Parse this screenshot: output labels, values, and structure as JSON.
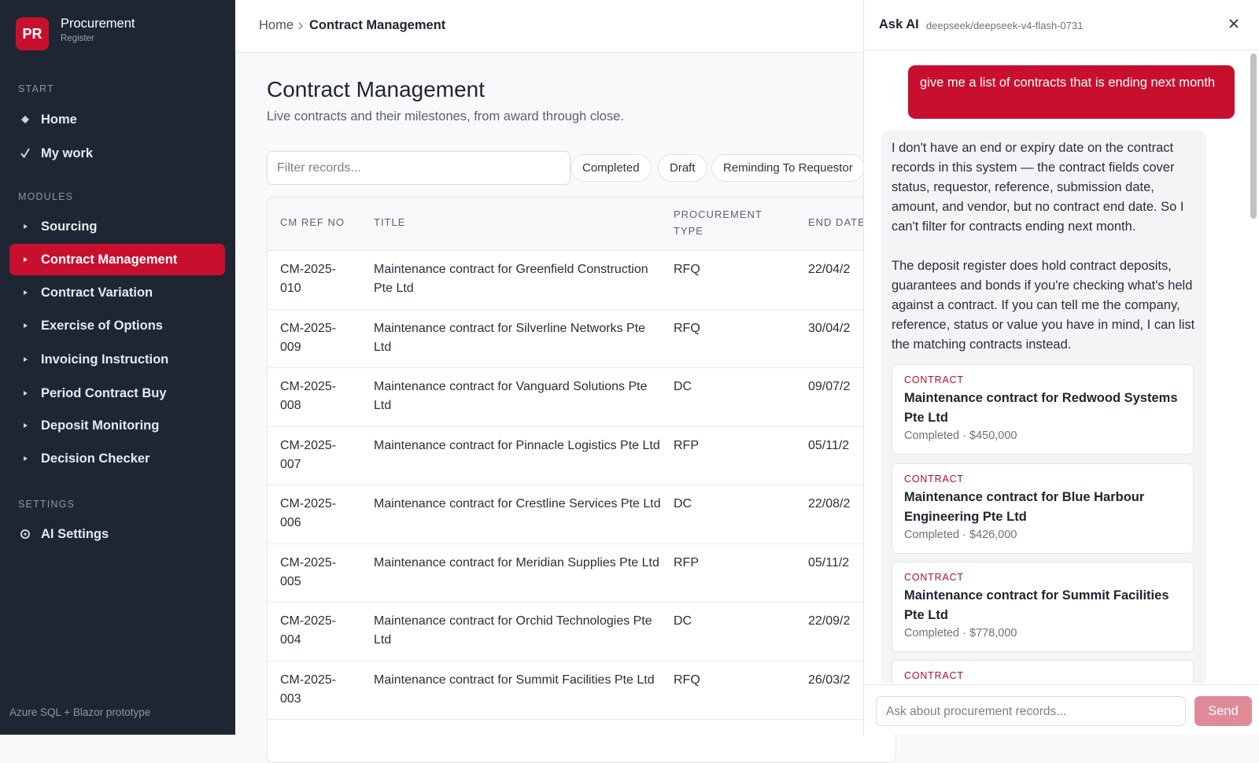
{
  "brand": {
    "initials": "PR",
    "name": "Procurement",
    "sub": "Register"
  },
  "nav": [
    {
      "label": "START",
      "items": [
        "Home",
        "My work"
      ]
    },
    {
      "label": "MODULES",
      "items": [
        "Sourcing",
        "Contract Management",
        "Contract Variation",
        "Exercise of Options",
        "Invoicing Instruction",
        "Period Contract Buy",
        "Deposit Monitoring",
        "Decision Checker"
      ]
    },
    {
      "label": "SETTINGS",
      "items": [
        "AI Settings"
      ]
    }
  ],
  "footer": "Azure SQL + Blazor prototype",
  "breadcrumb": [
    "Home",
    "Contract Management"
  ],
  "page": {
    "title": "Contract Management",
    "subtitle": "Live contracts and their milestones, from award through close.",
    "filter": "Filter records...",
    "chips": [
      "Completed",
      "Draft",
      "Reminding To Requestor"
    ]
  },
  "table": {
    "headers": [
      "CM REF NO",
      "TITLE",
      "PROCUREMENT TYPE",
      "END DATE"
    ],
    "rows": [
      [
        "CM-2025-010",
        "Maintenance contract for Greenfield Construction Pte Ltd",
        "RFQ",
        "22/04/2"
      ],
      [
        "CM-2025-009",
        "Maintenance contract for Silverline Networks Pte Ltd",
        "RFQ",
        "30/04/2"
      ],
      [
        "CM-2025-008",
        "Maintenance contract for Vanguard Solutions Pte Ltd",
        "DC",
        "09/07/2"
      ],
      [
        "CM-2025-007",
        "Maintenance contract for Pinnacle Logistics Pte Ltd",
        "RFP",
        "05/11/2"
      ],
      [
        "CM-2025-006",
        "Maintenance contract for Crestline Services Pte Ltd",
        "DC",
        "22/08/2"
      ],
      [
        "CM-2025-005",
        "Maintenance contract for Meridian Supplies Pte Ltd",
        "RFP",
        "05/11/2"
      ],
      [
        "CM-2025-004",
        "Maintenance contract for Orchid Technologies Pte Ltd",
        "DC",
        "22/09/2"
      ],
      [
        "CM-2025-003",
        "Maintenance contract for Summit Facilities Pte Ltd",
        "RFQ",
        "26/03/2"
      ]
    ]
  },
  "ai": {
    "title": "Ask AI",
    "model": "deepseek/deepseek-v4-flash-0731",
    "user": "give me a list of contracts that is ending next month",
    "reply": [
      "I don't have an end or expiry date on the contract records in this system — the contract fields cover status, requestor, reference, submission date, amount, and vendor, but no contract end date. So I can't filter for contracts ending next month.",
      "The deposit register does hold contract deposits, guarantees and bonds if you're checking what's held against a contract. If you can tell me the company, reference, status or value you have in mind, I can list the matching contracts instead."
    ],
    "cards": [
      {
        "kind": "CONTRACT",
        "title": "Maintenance contract for Redwood Systems Pte Ltd",
        "meta": "Completed · $450,000"
      },
      {
        "kind": "CONTRACT",
        "title": "Maintenance contract for Blue Harbour Engineering Pte Ltd",
        "meta": "Completed · $426,000"
      },
      {
        "kind": "CONTRACT",
        "title": "Maintenance contract for Summit Facilities Pte Ltd",
        "meta": "Completed · $778,000"
      },
      {
        "kind": "CONTRACT"
      }
    ],
    "input": "Ask about procurement records...",
    "send": "Send"
  }
}
